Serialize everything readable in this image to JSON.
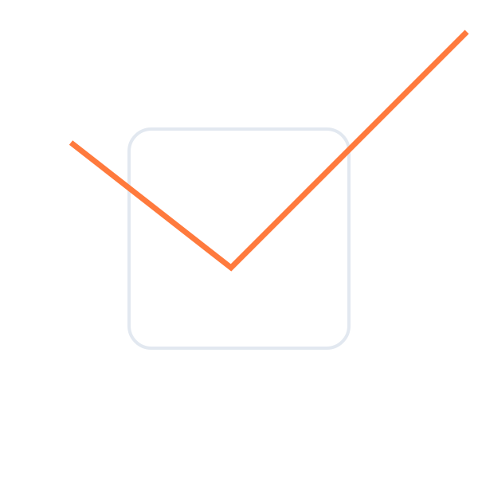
{
  "checkbox": {
    "checked": true,
    "icon": "checkmark-icon",
    "box_border_color": "#E2E8F0",
    "box_fill_color": "#FFFFFF",
    "check_color": "#FF7A3D"
  }
}
